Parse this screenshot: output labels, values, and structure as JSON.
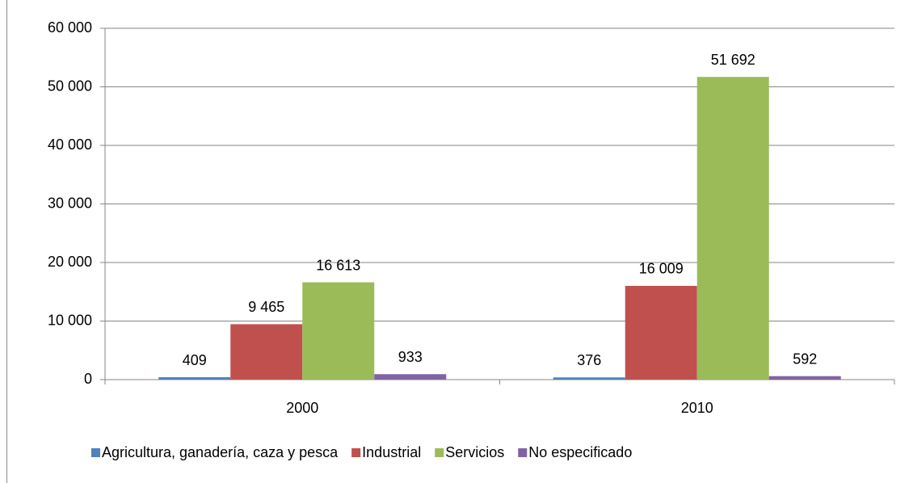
{
  "chart_data": {
    "type": "bar",
    "categories": [
      "2000",
      "2010"
    ],
    "series": [
      {
        "name": "Agricultura, ganadería, caza y pesca",
        "color": "#4f81bd",
        "values": [
          409,
          376
        ]
      },
      {
        "name": "Industrial",
        "color": "#c0504d",
        "values": [
          9465,
          16009
        ],
        "value_labels": [
          "9 465",
          "16 009"
        ]
      },
      {
        "name": "Servicios",
        "color": "#9bbb59",
        "values": [
          16613,
          51692
        ],
        "value_labels": [
          "16 613",
          "51 692"
        ]
      },
      {
        "name": "No especificado",
        "color": "#8064a2",
        "values": [
          933,
          592
        ]
      }
    ],
    "ylim": [
      0,
      60000
    ],
    "yticks": [
      0,
      {
        "value": 10000,
        "label": "10 000"
      },
      {
        "value": 20000,
        "label": "20 000"
      },
      {
        "value": 30000,
        "label": "30 000"
      },
      {
        "value": 40000,
        "label": "40 000"
      },
      {
        "value": 50000,
        "label": "50 000"
      },
      {
        "value": 60000,
        "label": "60 000"
      }
    ],
    "grid": true,
    "legend": "bottom"
  }
}
